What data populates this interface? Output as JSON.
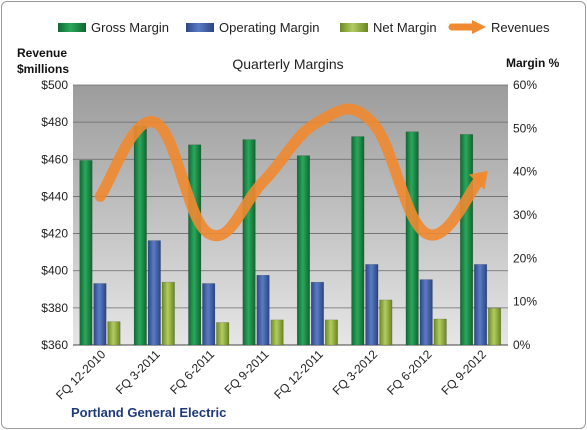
{
  "chart_data": {
    "type": "bar",
    "title": "Quarterly Margins",
    "source": "Portland General Electric",
    "categories": [
      "FQ 12-2010",
      "FQ 3-2011",
      "FQ 6-2011",
      "FQ 9-2011",
      "FQ 12-2011",
      "FQ 3-2012",
      "FQ 6-2012",
      "FQ 9-2012"
    ],
    "series": [
      {
        "name": "Gross Margin",
        "values": [
          42.6,
          50.6,
          46.2,
          47.4,
          43.7,
          48.1,
          49.2,
          48.6
        ],
        "color": "#1e8a4a"
      },
      {
        "name": "Operating Margin",
        "values": [
          14.2,
          24.1,
          14.2,
          16.1,
          14.5,
          18.6,
          15.1,
          18.6
        ],
        "color": "#3f5ea8"
      },
      {
        "name": "Net Margin",
        "values": [
          5.4,
          14.5,
          5.2,
          5.8,
          5.8,
          10.4,
          6.0,
          8.5
        ],
        "color": "#8aa63a"
      }
    ],
    "line_series": {
      "name": "Revenues",
      "values": [
        440,
        480,
        420,
        448,
        480,
        480,
        420,
        450
      ],
      "color": "#f08a30"
    },
    "y_left": {
      "label": "Revenue $millions",
      "label_line1": "Revenue",
      "label_line2": "$millions",
      "ticks": [
        "$360",
        "$380",
        "$400",
        "$420",
        "$440",
        "$460",
        "$480",
        "$500"
      ],
      "min": 360,
      "max": 500
    },
    "y_right": {
      "label": "Margin %",
      "ticks": [
        "0%",
        "10%",
        "20%",
        "30%",
        "40%",
        "50%",
        "60%"
      ],
      "min": 0,
      "max": 60
    },
    "legend_position": "top",
    "grid": true
  }
}
